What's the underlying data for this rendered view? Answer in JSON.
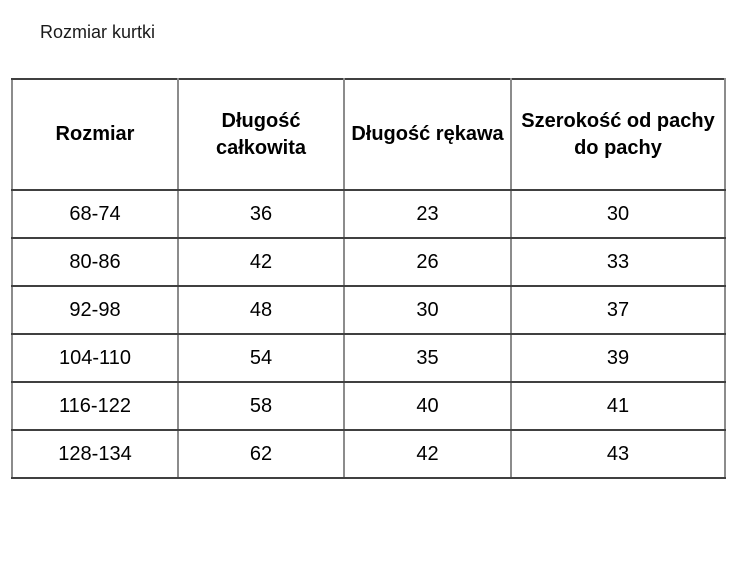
{
  "page": {
    "title": "Rozmiar kurtki"
  },
  "table": {
    "columns": [
      "Rozmiar",
      "Długość całkowita",
      "Długość rękawa",
      "Szerokość od pachy do pachy"
    ],
    "rows": [
      [
        "68-74",
        "36",
        "23",
        "30"
      ],
      [
        "80-86",
        "42",
        "26",
        "33"
      ],
      [
        "92-98",
        "48",
        "30",
        "37"
      ],
      [
        "104-110",
        "54",
        "35",
        "39"
      ],
      [
        "116-122",
        "58",
        "40",
        "41"
      ],
      [
        "128-134",
        "62",
        "42",
        "43"
      ]
    ],
    "colors": {
      "background": "#ffffff",
      "text": "#000000",
      "border_horizontal": "#404040",
      "border_vertical": "#8c8c8c"
    }
  }
}
